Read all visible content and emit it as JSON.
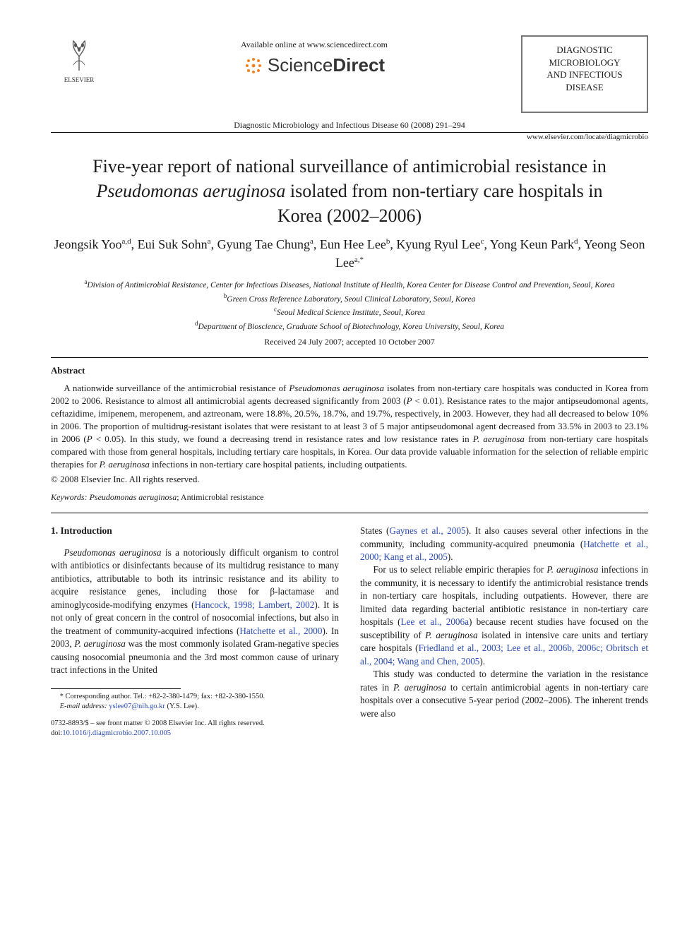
{
  "header": {
    "elsevier_label": "ELSEVIER",
    "available_line": "Available online at www.sciencedirect.com",
    "sd_label_light": "Science",
    "sd_label_bold": "Direct",
    "journal_box_lines": [
      "DIAGNOSTIC",
      "MICROBIOLOGY",
      "AND INFECTIOUS",
      "DISEASE"
    ],
    "citation": "Diagnostic Microbiology and Infectious Disease 60 (2008) 291–294",
    "journal_url": "www.elsevier.com/locate/diagmicrobio"
  },
  "title": {
    "pre": "Five-year report of national surveillance of antimicrobial resistance in ",
    "ital": "Pseudomonas aeruginosa",
    "post": " isolated from non-tertiary care hospitals in Korea (2002–2006)"
  },
  "authors": [
    {
      "name": "Jeongsik Yoo",
      "sup": "a,d"
    },
    {
      "name": "Eui Suk Sohn",
      "sup": "a"
    },
    {
      "name": "Gyung Tae Chung",
      "sup": "a"
    },
    {
      "name": "Eun Hee Lee",
      "sup": "b"
    },
    {
      "name": "Kyung Ryul Lee",
      "sup": "c"
    },
    {
      "name": "Yong Keun Park",
      "sup": "d"
    },
    {
      "name": "Yeong Seon Lee",
      "sup": "a,*"
    }
  ],
  "affiliations": [
    {
      "sup": "a",
      "text": "Division of Antimicrobial Resistance, Center for Infectious Diseases, National Institute of Health, Korea Center for Disease Control and Prevention, Seoul, Korea"
    },
    {
      "sup": "b",
      "text": "Green Cross Reference Laboratory, Seoul Clinical Laboratory, Seoul, Korea"
    },
    {
      "sup": "c",
      "text": "Seoul Medical Science Institute, Seoul, Korea"
    },
    {
      "sup": "d",
      "text": "Department of Bioscience, Graduate School of Biotechnology, Korea University, Seoul, Korea"
    }
  ],
  "received": "Received 24 July 2007; accepted 10 October 2007",
  "abstract": {
    "heading": "Abstract",
    "body_html": "A nationwide surveillance of the antimicrobial resistance of <span class='ital'>Pseudomonas aeruginosa</span> isolates from non-tertiary care hospitals was conducted in Korea from 2002 to 2006. Resistance to almost all antimicrobial agents decreased significantly from 2003 (<span class='ital'>P</span> &lt; 0.01). Resistance rates to the major antipseudomonal agents, ceftazidime, imipenem, meropenem, and aztreonam, were 18.8%, 20.5%, 18.7%, and 19.7%, respectively, in 2003. However, they had all decreased to below 10% in 2006. The proportion of multidrug-resistant isolates that were resistant to at least 3 of 5 major antipseudomonal agent decreased from 33.5% in 2003 to 23.1% in 2006 (<span class='ital'>P</span> &lt; 0.05). In this study, we found a decreasing trend in resistance rates and low resistance rates in <span class='ital'>P. aeruginosa</span> from non-tertiary care hospitals compared with those from general hospitals, including tertiary care hospitals, in Korea. Our data provide valuable information for the selection of reliable empiric therapies for <span class='ital'>P. aeruginosa</span> infections in non-tertiary care hospital patients, including outpatients.",
    "copyright": "© 2008 Elsevier Inc. All rights reserved."
  },
  "keywords": {
    "label": "Keywords:",
    "value_html": " <span class='ital'>Pseudomonas aeruginosa</span>; Antimicrobial resistance"
  },
  "section1": {
    "heading": "1. Introduction",
    "left_paras_html": [
      "<span class='ital'>Pseudomonas aeruginosa</span> is a notoriously difficult organism to control with antibiotics or disinfectants because of its multidrug resistance to many antibiotics, attributable to both its intrinsic resistance and its ability to acquire resistance genes, including those for β-lactamase and aminoglycoside-modifying enzymes (<span class='link'>Hancock, 1998; Lambert, 2002</span>). It is not only of great concern in the control of nosocomial infections, but also in the treatment of community-acquired infections (<span class='link'>Hatchette et al., 2000</span>). In 2003, <span class='ital'>P. aeruginosa</span> was the most commonly isolated Gram-negative species causing nosocomial pneumonia and the 3rd most common cause of urinary tract infections in the United"
    ],
    "right_paras_html": [
      "States (<span class='link'>Gaynes et al., 2005</span>). It also causes several other infections in the community, including community-acquired pneumonia (<span class='link'>Hatchette et al., 2000; Kang et al., 2005</span>).",
      "For us to select reliable empiric therapies for <span class='ital'>P. aeruginosa</span> infections in the community, it is necessary to identify the antimicrobial resistance trends in non-tertiary care hospitals, including outpatients. However, there are limited data regarding bacterial antibiotic resistance in non-tertiary care hospitals (<span class='link'>Lee et al., 2006a</span>) because recent studies have focused on the susceptibility of <span class='ital'>P. aeruginosa</span> isolated in intensive care units and tertiary care hospitals (<span class='link'>Friedland et al., 2003; Lee et al., 2006b, 2006c; Obritsch et al., 2004; Wang and Chen, 2005</span>).",
      "This study was conducted to determine the variation in the resistance rates in <span class='ital'>P. aeruginosa</span> to certain antimicrobial agents in non-tertiary care hospitals over a consecutive 5-year period (2002–2006). The inherent trends were also"
    ]
  },
  "footnote": {
    "corr_html": "* Corresponding author. Tel.: +82-2-380-1479; fax: +82-2-380-1550.",
    "email_label": "E-mail address:",
    "email_value": "yslee07@nih.go.kr",
    "email_paren": "(Y.S. Lee)."
  },
  "footer": {
    "line1": "0732-8893/$ – see front matter © 2008 Elsevier Inc. All rights reserved.",
    "doi_label": "doi:",
    "doi_value": "10.1016/j.diagmicrobio.2007.10.005"
  },
  "colors": {
    "text": "#1a1a1a",
    "link": "#2a4bb0",
    "box_border": "#777777",
    "sd_orange": "#f5821f",
    "elsevier_gray": "#555555"
  }
}
